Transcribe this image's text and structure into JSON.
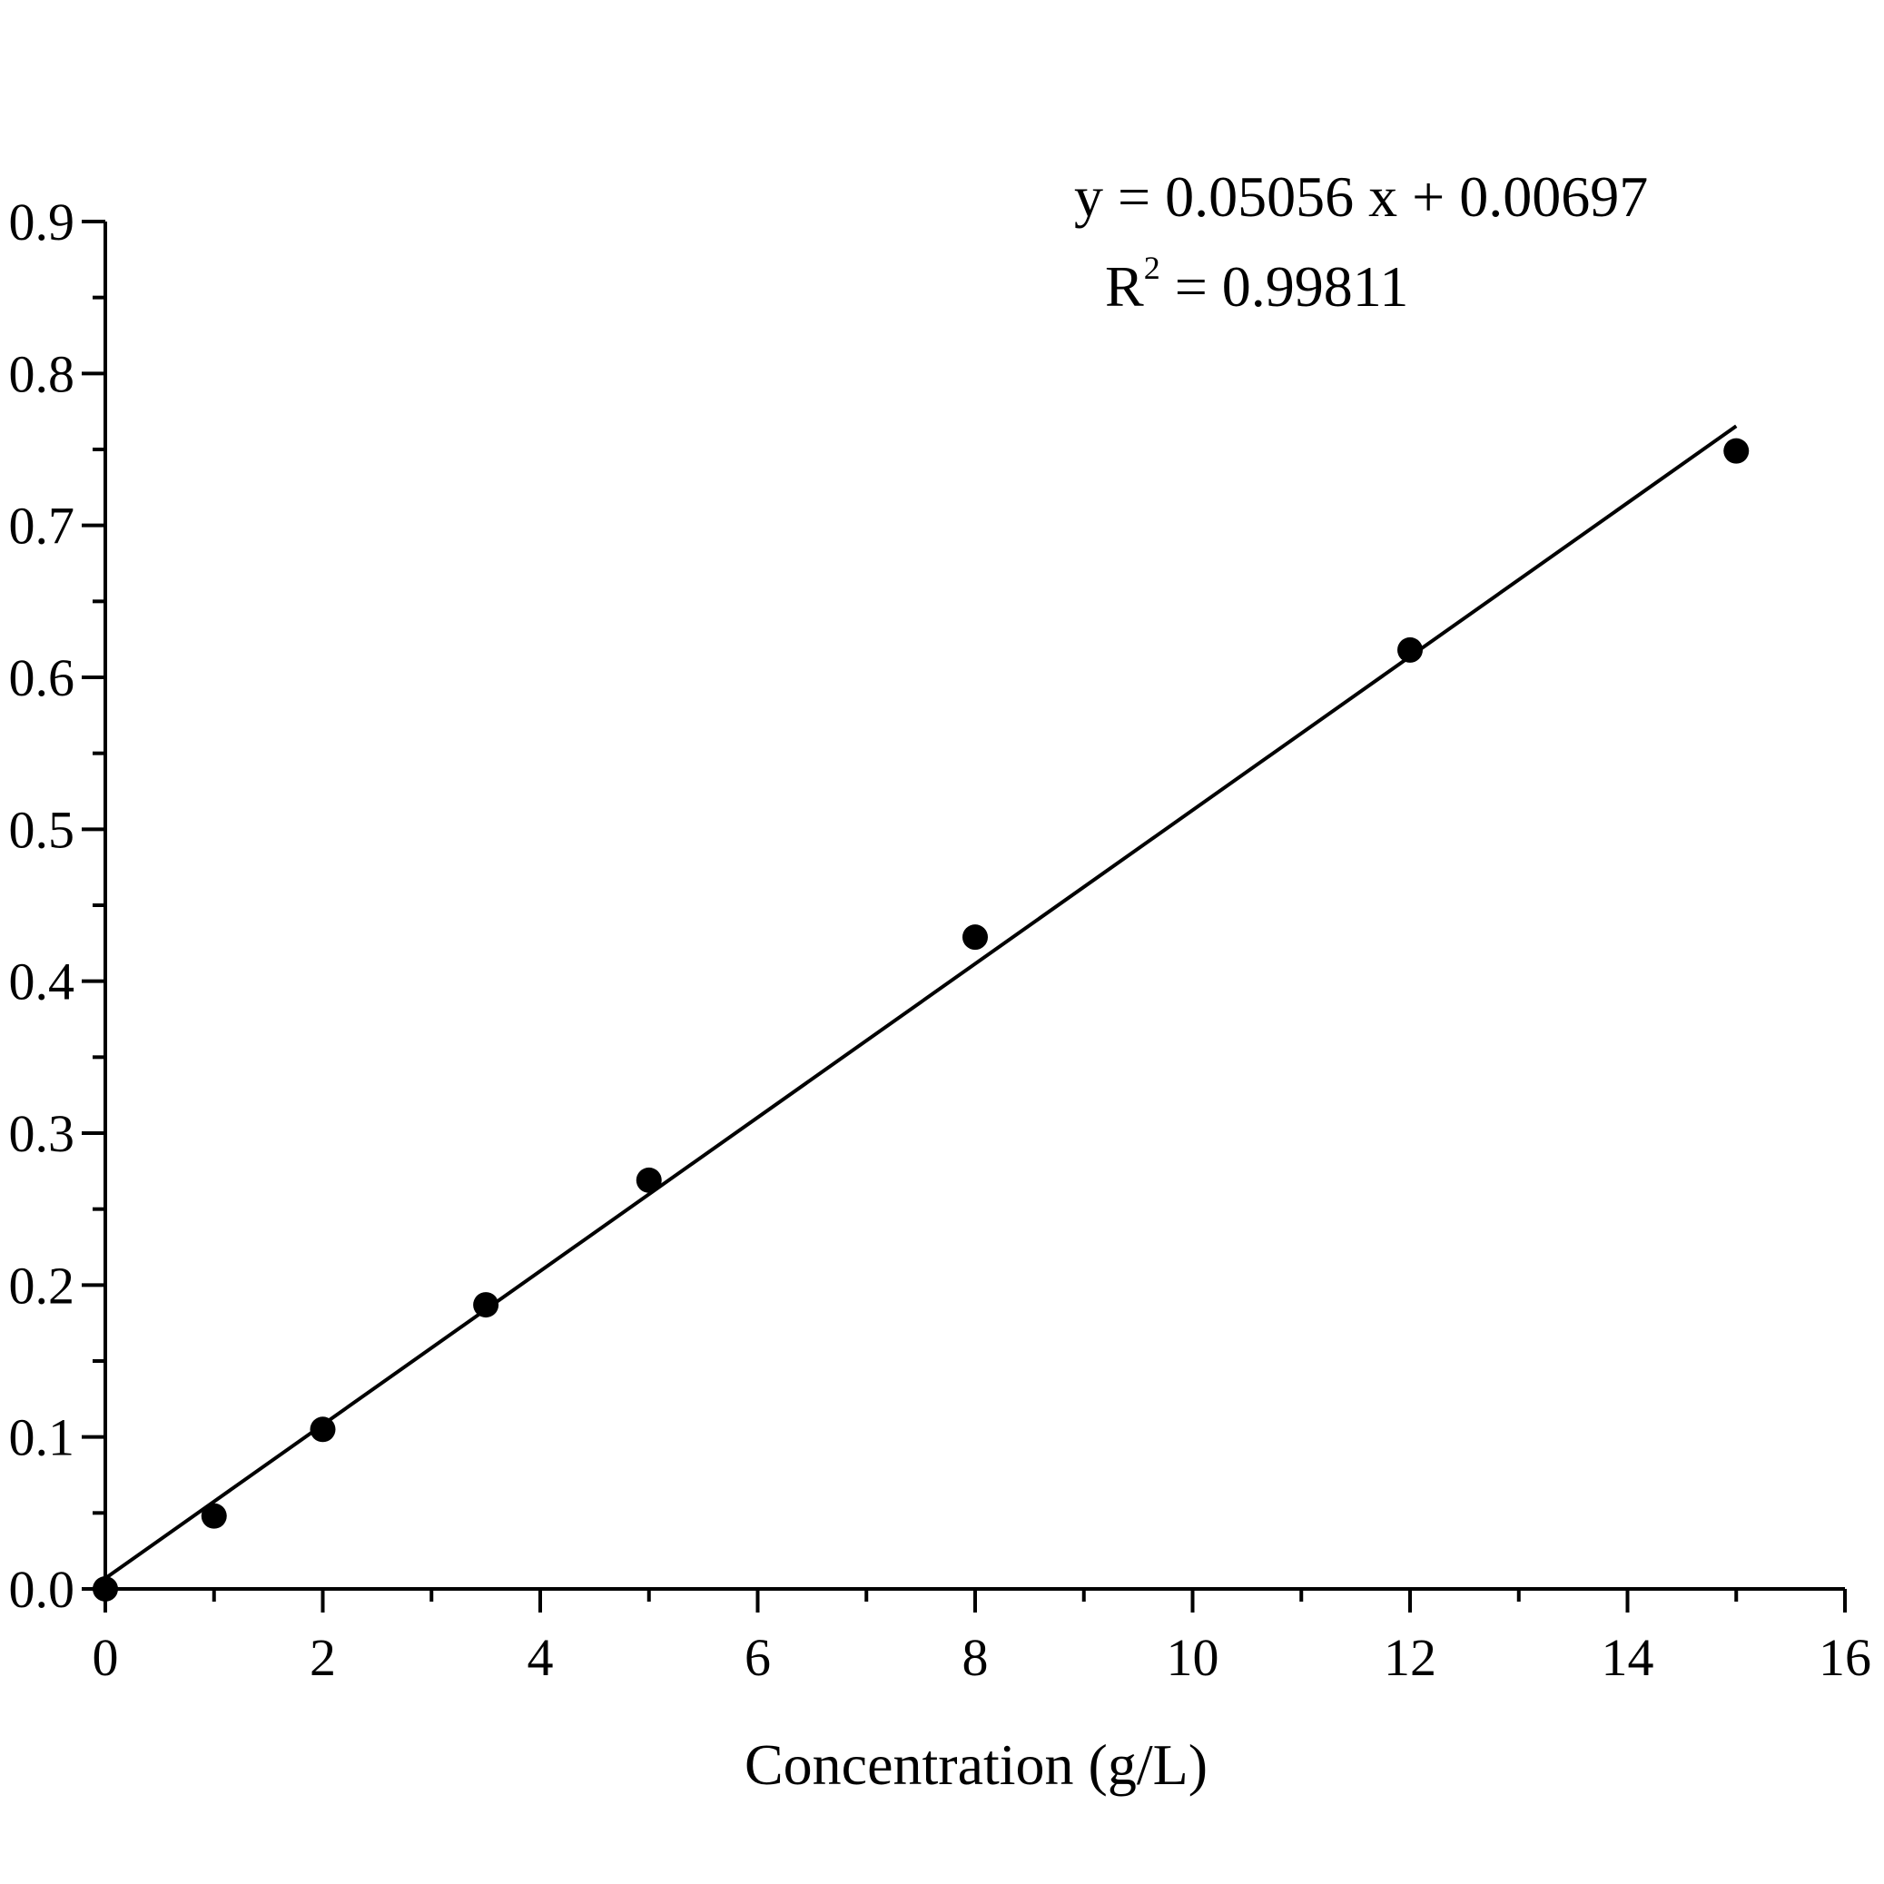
{
  "chart_data": {
    "type": "scatter",
    "title": "",
    "xlabel": "Concentration (g/L)",
    "ylabel": "",
    "xlim": [
      0,
      16
    ],
    "ylim": [
      0,
      0.9
    ],
    "x_ticks": [
      "0",
      "2",
      "4",
      "6",
      "8",
      "10",
      "12",
      "14",
      "16"
    ],
    "y_ticks": [
      "0.0",
      "0.1",
      "0.2",
      "0.3",
      "0.4",
      "0.5",
      "0.6",
      "0.7",
      "0.8",
      "0.9"
    ],
    "grid": false,
    "legend": "none",
    "series": [
      {
        "marker": "filled-circle",
        "color": "#000000",
        "x": [
          0,
          1,
          2,
          3.5,
          5,
          8,
          12,
          15
        ],
        "y": [
          0.0,
          0.048,
          0.105,
          0.187,
          0.269,
          0.429,
          0.618,
          0.749
        ]
      }
    ],
    "fit_line": {
      "slope": 0.05056,
      "intercept": 0.00697,
      "x_range": [
        0,
        15
      ]
    },
    "annotations": {
      "equation": "y = 0.05056 x + 0.00697",
      "r2_prefix": "R",
      "r2_sup": "2",
      "r2_value": " = 0.99811"
    }
  }
}
